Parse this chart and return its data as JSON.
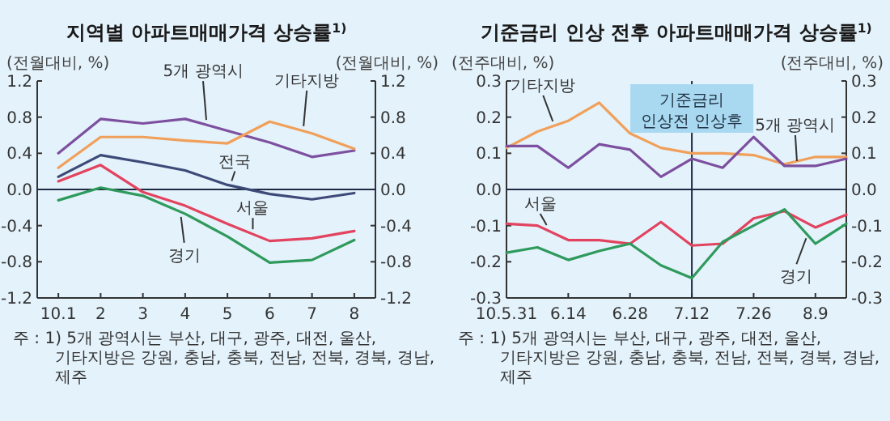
{
  "chart_data": [
    {
      "type": "line",
      "title": "지역별 아파트매매가격 상승률$^{1)}$",
      "ylabel": "(전월대비, %)",
      "y2label": "(전월대비, %)",
      "categories": [
        "10.1",
        "2",
        "3",
        "4",
        "5",
        "6",
        "7",
        "8"
      ],
      "series": [
        {
          "name": "5개 광역시",
          "color": "#7d4f9f",
          "values": [
            0.4,
            0.78,
            0.73,
            0.78,
            0.65,
            0.52,
            0.36,
            0.43
          ]
        },
        {
          "name": "기타지방",
          "color": "#f0a05a",
          "values": [
            0.24,
            0.58,
            0.58,
            0.54,
            0.51,
            0.75,
            0.62,
            0.45
          ]
        },
        {
          "name": "전국",
          "color": "#3d4a78",
          "values": [
            0.14,
            0.38,
            0.3,
            0.21,
            0.05,
            -0.05,
            -0.11,
            -0.04
          ]
        },
        {
          "name": "서울",
          "color": "#e2435e",
          "values": [
            0.09,
            0.27,
            -0.03,
            -0.18,
            -0.38,
            -0.57,
            -0.54,
            -0.46
          ]
        },
        {
          "name": "경기",
          "color": "#2e9a5c",
          "values": [
            -0.12,
            0.02,
            -0.07,
            -0.27,
            -0.52,
            -0.81,
            -0.78,
            -0.56
          ]
        }
      ],
      "ylim": [
        -1.2,
        1.2
      ],
      "yticks": [
        -1.2,
        -0.8,
        -0.4,
        {
          "value": 0,
          "label": "0.0"
        },
        0.4,
        0.8,
        1.2
      ],
      "y2lim": [
        -1.2,
        1.2
      ],
      "y2ticks": [
        -1.2,
        -0.8,
        -0.4,
        {
          "value": 0,
          "label": "0.0"
        },
        0.4,
        0.8,
        1.2
      ],
      "ref_lines": [
        {
          "axis": "y",
          "value": 0,
          "color": "#1f2a44"
        }
      ],
      "annotations": [
        "주 : 1) 5개 광역시는 부산, 대구, 광주, 대전, 울산,",
        "기타지방은 강원, 충남, 충북, 전남, 전북, 경북, 경남, 제주"
      ]
    },
    {
      "type": "line",
      "title": "기준금리 인상 전후 아파트매매가격 상승률$^{1)}$",
      "ylabel": "(전주대비, %)",
      "y2label": "(전주대비, %)",
      "categories": [
        "10.5.31",
        null,
        "6.14",
        null,
        "6.28",
        null,
        "7.12",
        null,
        "7.26",
        null,
        "8.9",
        null
      ],
      "series": [
        {
          "name": "기타지방",
          "color": "#f0a05a",
          "values": [
            0.115,
            0.16,
            0.19,
            0.24,
            0.155,
            0.115,
            0.1,
            0.1,
            0.095,
            0.07,
            0.09,
            0.09
          ]
        },
        {
          "name": "5개 광역시",
          "color": "#7d4f9f",
          "values": [
            0.12,
            0.12,
            0.06,
            0.125,
            0.11,
            0.035,
            0.085,
            0.06,
            0.145,
            0.065,
            0.065,
            0.085
          ]
        },
        {
          "name": "서울",
          "color": "#e2435e",
          "values": [
            -0.095,
            -0.1,
            -0.14,
            -0.14,
            -0.15,
            -0.09,
            -0.155,
            -0.15,
            -0.08,
            -0.06,
            -0.105,
            -0.07
          ]
        },
        {
          "name": "경기",
          "color": "#2e9a5c",
          "values": [
            -0.175,
            -0.16,
            -0.195,
            -0.17,
            -0.15,
            -0.21,
            -0.245,
            -0.145,
            -0.1,
            -0.055,
            -0.15,
            -0.095
          ]
        }
      ],
      "ylim": [
        -0.3,
        0.3
      ],
      "yticks": [
        -0.3,
        -0.2,
        -0.1,
        {
          "value": 0,
          "label": "0.0"
        },
        0.1,
        0.2,
        0.3
      ],
      "y2lim": [
        -0.3,
        0.3
      ],
      "y2ticks": [
        -0.3,
        -0.2,
        -0.1,
        {
          "value": 0,
          "label": "0.0"
        },
        0.1,
        0.2,
        0.3
      ],
      "ref_lines": [
        {
          "axis": "y",
          "value": 0,
          "color": "#1f2a44"
        },
        {
          "axis": "x",
          "value": "7.12",
          "label": "기준금리\n인상전 인상후",
          "color": "#1f2a44"
        }
      ],
      "annotations": [
        "주 : 1) 5개 광역시는 부산, 대구, 광주, 대전, 울산,",
        "기타지방은 강원, 충남, 충북, 전남, 전북, 경북, 경남, 제주"
      ]
    }
  ]
}
